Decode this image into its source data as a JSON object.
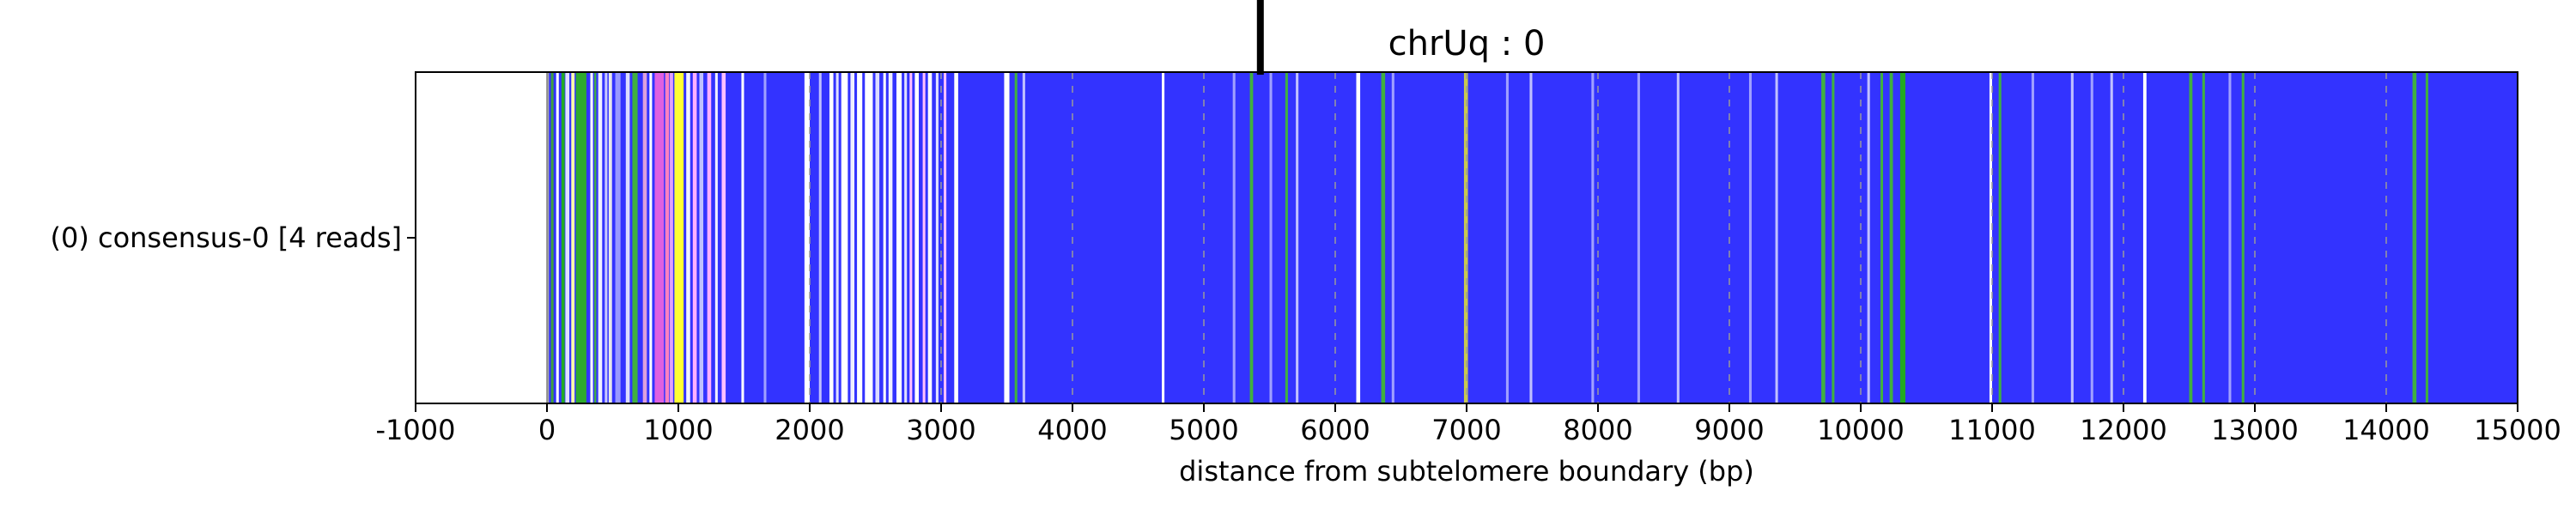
{
  "chart_data": {
    "type": "heatmap",
    "title": "chrUq : 0",
    "xlabel": "distance from subtelomere boundary (bp)",
    "ylabel": "",
    "xlim": [
      -1000,
      15000
    ],
    "x_ticks": [
      -1000,
      0,
      1000,
      2000,
      3000,
      4000,
      5000,
      6000,
      7000,
      8000,
      9000,
      10000,
      11000,
      12000,
      13000,
      14000,
      15000
    ],
    "x_tick_labels": [
      "-1000",
      "0",
      "1000",
      "2000",
      "3000",
      "4000",
      "5000",
      "6000",
      "7000",
      "8000",
      "9000",
      "10000",
      "11000",
      "12000",
      "13000",
      "14000",
      "15000"
    ],
    "rows": [
      {
        "label": "(0) consensus-0 [4 reads]",
        "track_start": 0,
        "track_end": 15000,
        "background_color": "#3333ff"
      }
    ],
    "marker_x": 5430,
    "dashed_gridlines": [
      2000,
      3000,
      4000,
      5000,
      6000,
      7000,
      8000,
      9000,
      10000,
      11000,
      12000,
      13000,
      14000
    ],
    "features": [
      {
        "x": 0,
        "w": 15,
        "color": "#a9a9a9"
      },
      {
        "x": 30,
        "w": 20,
        "color": "#40a040"
      },
      {
        "x": 70,
        "w": 20,
        "color": "#ffffff"
      },
      {
        "x": 110,
        "w": 25,
        "color": "#22aa22"
      },
      {
        "x": 140,
        "w": 30,
        "color": "#e0e0ff"
      },
      {
        "x": 185,
        "w": 25,
        "color": "#ffffaa"
      },
      {
        "x": 220,
        "w": 80,
        "color": "#2eaa2e"
      },
      {
        "x": 330,
        "w": 20,
        "color": "#ffffff"
      },
      {
        "x": 360,
        "w": 15,
        "color": "#40b040"
      },
      {
        "x": 390,
        "w": 30,
        "color": "#f0f0ff"
      },
      {
        "x": 440,
        "w": 20,
        "color": "#c8c8ff"
      },
      {
        "x": 470,
        "w": 25,
        "color": "#e8e8e8"
      },
      {
        "x": 520,
        "w": 40,
        "color": "#9999ff"
      },
      {
        "x": 600,
        "w": 30,
        "color": "#dcdcff"
      },
      {
        "x": 650,
        "w": 40,
        "color": "#40b040"
      },
      {
        "x": 730,
        "w": 30,
        "color": "#dda0dd"
      },
      {
        "x": 780,
        "w": 20,
        "color": "#ffffff"
      },
      {
        "x": 820,
        "w": 70,
        "color": "#e060e0"
      },
      {
        "x": 900,
        "w": 30,
        "color": "#ff80c0"
      },
      {
        "x": 935,
        "w": 25,
        "color": "#e0a0ff"
      },
      {
        "x": 970,
        "w": 70,
        "color": "#ffff33"
      },
      {
        "x": 1060,
        "w": 30,
        "color": "#f0f0ff"
      },
      {
        "x": 1110,
        "w": 30,
        "color": "#ffb0ff"
      },
      {
        "x": 1160,
        "w": 30,
        "color": "#c0c0ff"
      },
      {
        "x": 1220,
        "w": 30,
        "color": "#ffb0ff"
      },
      {
        "x": 1280,
        "w": 20,
        "color": "#f0f0ff"
      },
      {
        "x": 1330,
        "w": 30,
        "color": "#ffc0ff"
      },
      {
        "x": 1480,
        "w": 20,
        "color": "#ffffff"
      },
      {
        "x": 1650,
        "w": 20,
        "color": "#a0a0ff"
      },
      {
        "x": 1960,
        "w": 40,
        "color": "#ffffff"
      },
      {
        "x": 2070,
        "w": 20,
        "color": "#c0c0ff"
      },
      {
        "x": 2150,
        "w": 30,
        "color": "#ffffff"
      },
      {
        "x": 2200,
        "w": 20,
        "color": "#e0e0ff"
      },
      {
        "x": 2240,
        "w": 50,
        "color": "#ffffff"
      },
      {
        "x": 2310,
        "w": 30,
        "color": "#f0f0ff"
      },
      {
        "x": 2360,
        "w": 40,
        "color": "#ffffff"
      },
      {
        "x": 2420,
        "w": 60,
        "color": "#ffffff"
      },
      {
        "x": 2500,
        "w": 30,
        "color": "#dcdcff"
      },
      {
        "x": 2560,
        "w": 20,
        "color": "#ffffff"
      },
      {
        "x": 2600,
        "w": 30,
        "color": "#f0f0ff"
      },
      {
        "x": 2660,
        "w": 40,
        "color": "#ffffff"
      },
      {
        "x": 2720,
        "w": 20,
        "color": "#e0e0ff"
      },
      {
        "x": 2760,
        "w": 20,
        "color": "#ffc0ff"
      },
      {
        "x": 2800,
        "w": 30,
        "color": "#ffffff"
      },
      {
        "x": 2860,
        "w": 20,
        "color": "#ffc0ff"
      },
      {
        "x": 2900,
        "w": 30,
        "color": "#ffffff"
      },
      {
        "x": 2960,
        "w": 20,
        "color": "#e0e0ff"
      },
      {
        "x": 3020,
        "w": 20,
        "color": "#ffc0ff"
      },
      {
        "x": 3100,
        "w": 30,
        "color": "#ffffff"
      },
      {
        "x": 3480,
        "w": 40,
        "color": "#ffffff"
      },
      {
        "x": 3560,
        "w": 20,
        "color": "#40b040"
      },
      {
        "x": 3620,
        "w": 20,
        "color": "#c0c0ff"
      },
      {
        "x": 4680,
        "w": 20,
        "color": "#ffffff"
      },
      {
        "x": 5220,
        "w": 20,
        "color": "#a0a0ff"
      },
      {
        "x": 5350,
        "w": 25,
        "color": "#40b040"
      },
      {
        "x": 5500,
        "w": 20,
        "color": "#a0a0ff"
      },
      {
        "x": 5620,
        "w": 20,
        "color": "#40b040"
      },
      {
        "x": 5700,
        "w": 20,
        "color": "#c0c0ff"
      },
      {
        "x": 6160,
        "w": 30,
        "color": "#ffffff"
      },
      {
        "x": 6350,
        "w": 30,
        "color": "#40b040"
      },
      {
        "x": 6430,
        "w": 20,
        "color": "#a0a0ff"
      },
      {
        "x": 6980,
        "w": 30,
        "color": "#c8c850"
      },
      {
        "x": 7300,
        "w": 20,
        "color": "#a0a0ff"
      },
      {
        "x": 7480,
        "w": 20,
        "color": "#c0c0ff"
      },
      {
        "x": 7950,
        "w": 20,
        "color": "#a0a0ff"
      },
      {
        "x": 8300,
        "w": 20,
        "color": "#a0a0ff"
      },
      {
        "x": 8600,
        "w": 20,
        "color": "#c0c0ff"
      },
      {
        "x": 9150,
        "w": 20,
        "color": "#a0a0ff"
      },
      {
        "x": 9350,
        "w": 20,
        "color": "#c0c0ff"
      },
      {
        "x": 9700,
        "w": 30,
        "color": "#40b040"
      },
      {
        "x": 9780,
        "w": 20,
        "color": "#40b040"
      },
      {
        "x": 10050,
        "w": 20,
        "color": "#c0c0ff"
      },
      {
        "x": 10150,
        "w": 20,
        "color": "#40b040"
      },
      {
        "x": 10220,
        "w": 25,
        "color": "#40b040"
      },
      {
        "x": 10300,
        "w": 40,
        "color": "#22aa22"
      },
      {
        "x": 10980,
        "w": 20,
        "color": "#ffffff"
      },
      {
        "x": 11050,
        "w": 20,
        "color": "#40b040"
      },
      {
        "x": 11300,
        "w": 20,
        "color": "#a0a0ff"
      },
      {
        "x": 11600,
        "w": 20,
        "color": "#c0c0ff"
      },
      {
        "x": 11750,
        "w": 20,
        "color": "#a0a0ff"
      },
      {
        "x": 11900,
        "w": 20,
        "color": "#c0c0ff"
      },
      {
        "x": 12150,
        "w": 25,
        "color": "#ffffff"
      },
      {
        "x": 12500,
        "w": 25,
        "color": "#40b040"
      },
      {
        "x": 12600,
        "w": 20,
        "color": "#40b040"
      },
      {
        "x": 12800,
        "w": 20,
        "color": "#a0a0ff"
      },
      {
        "x": 12900,
        "w": 20,
        "color": "#40b040"
      },
      {
        "x": 14200,
        "w": 30,
        "color": "#40b040"
      },
      {
        "x": 14300,
        "w": 20,
        "color": "#40b040"
      }
    ]
  }
}
